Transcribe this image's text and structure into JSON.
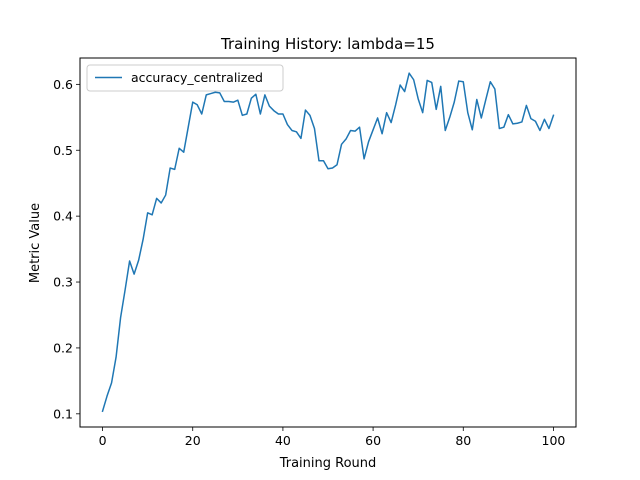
{
  "chart_data": {
    "type": "line",
    "title": "Training History: lambda=15",
    "xlabel": "Training Round",
    "ylabel": "Metric Value",
    "xlim": [
      -5,
      105
    ],
    "ylim": [
      0.08,
      0.64
    ],
    "xticks": [
      0,
      20,
      40,
      60,
      80,
      100
    ],
    "yticks": [
      0.1,
      0.2,
      0.3,
      0.4,
      0.5,
      0.6
    ],
    "ytick_labels": [
      "0.1",
      "0.2",
      "0.3",
      "0.4",
      "0.5",
      "0.6"
    ],
    "grid": false,
    "legend_position": "upper-left",
    "series": [
      {
        "name": "accuracy_centralized",
        "color": "#1f77b4",
        "x": [
          0,
          1,
          2,
          3,
          4,
          5,
          6,
          7,
          8,
          9,
          10,
          11,
          12,
          13,
          14,
          15,
          16,
          17,
          18,
          19,
          20,
          21,
          22,
          23,
          24,
          25,
          26,
          27,
          28,
          29,
          30,
          31,
          32,
          33,
          34,
          35,
          36,
          37,
          38,
          39,
          40,
          41,
          42,
          43,
          44,
          45,
          46,
          47,
          48,
          49,
          50,
          51,
          52,
          53,
          54,
          55,
          56,
          57,
          58,
          59,
          60,
          61,
          62,
          63,
          64,
          65,
          66,
          67,
          68,
          69,
          70,
          71,
          72,
          73,
          74,
          75,
          76,
          77,
          78,
          79,
          80,
          81,
          82,
          83,
          84,
          85,
          86,
          87,
          88,
          89,
          90,
          91,
          92,
          93,
          94,
          95,
          96,
          97,
          98,
          99,
          100
        ],
        "values": [
          0.104,
          0.127,
          0.147,
          0.186,
          0.246,
          0.288,
          0.332,
          0.312,
          0.333,
          0.365,
          0.405,
          0.402,
          0.427,
          0.42,
          0.432,
          0.473,
          0.471,
          0.503,
          0.497,
          0.535,
          0.573,
          0.569,
          0.555,
          0.584,
          0.586,
          0.588,
          0.587,
          0.574,
          0.574,
          0.573,
          0.576,
          0.553,
          0.555,
          0.579,
          0.585,
          0.555,
          0.584,
          0.567,
          0.56,
          0.555,
          0.555,
          0.539,
          0.53,
          0.528,
          0.518,
          0.561,
          0.553,
          0.533,
          0.484,
          0.484,
          0.472,
          0.473,
          0.478,
          0.509,
          0.517,
          0.53,
          0.529,
          0.535,
          0.487,
          0.513,
          0.531,
          0.549,
          0.525,
          0.557,
          0.542,
          0.569,
          0.599,
          0.589,
          0.617,
          0.607,
          0.578,
          0.557,
          0.606,
          0.603,
          0.562,
          0.597,
          0.53,
          0.55,
          0.573,
          0.605,
          0.604,
          0.557,
          0.531,
          0.577,
          0.549,
          0.577,
          0.604,
          0.593,
          0.533,
          0.535,
          0.554,
          0.54,
          0.541,
          0.543,
          0.568,
          0.548,
          0.544,
          0.53,
          0.547,
          0.533,
          0.553
        ]
      }
    ]
  }
}
